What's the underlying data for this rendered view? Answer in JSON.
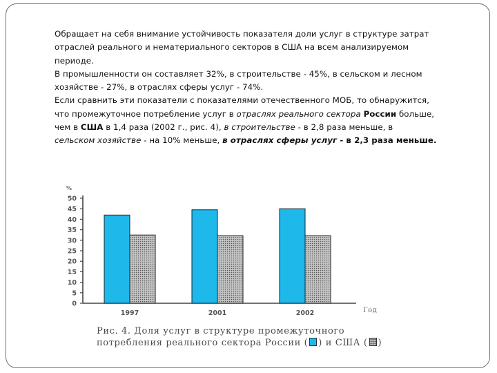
{
  "paragraphs": [
    {
      "lines": [
        "Обращает на себя внимание устойчивость показателя доли услуг в структуре затрат",
        "отраслей реального и нематериального секторов в США на всем анализируемом",
        "периоде."
      ]
    },
    {
      "lines": [
        "В промышленности он составляет 32%, в строительстве - 45%, в сельском и лесном",
        "хозяйстве - 27%, в отраслях сферы услуг - 74%."
      ]
    },
    {
      "line1": "Если сравнить эти показатели с показателями отечественного МОБ, то обнаружится,",
      "line2_a": "что промежуточное потребление услуг в ",
      "line2_italic": "отраслях реального сектора",
      "line2_bold": "России",
      "line2_b": " больше,",
      "line3_a": "чем в ",
      "line3_bold": "США",
      "line3_b": " в 1,4 раза (2002 г., рис. 4), ",
      "line3_italic": "в строительстве",
      "line3_c": " - в 2,8 раза меньше, в",
      "line4_italic": "сельском хозяйстве",
      "line4_a": " - на 10% меньше, ",
      "line4_bold_italic": "в отраслях сферы услуг",
      "line4_bold": " - в 2,3 раза меньше."
    }
  ],
  "chart_data": {
    "type": "bar",
    "categories": [
      "1997",
      "2001",
      "2002"
    ],
    "series": [
      {
        "values": [
          42,
          44.5,
          45
        ],
        "color": "#1fb8ea"
      },
      {
        "values": [
          32.5,
          32.2,
          32.2
        ],
        "color": "#bdbdbd"
      }
    ],
    "yunit": "%",
    "xlabel": "Год",
    "ylim": [
      0,
      50
    ],
    "yticks": [
      "0",
      "5",
      "10",
      "15",
      "20",
      "25",
      "30",
      "35",
      "40",
      "45",
      "50"
    ],
    "grid": false,
    "caption_line1": "Рис. 4. Доля услуг в структуре промежуточного",
    "caption_line2_a": "потребления реального сектора России (",
    "caption_line2_b": ") и США (",
    "caption_line2_c": ")"
  }
}
